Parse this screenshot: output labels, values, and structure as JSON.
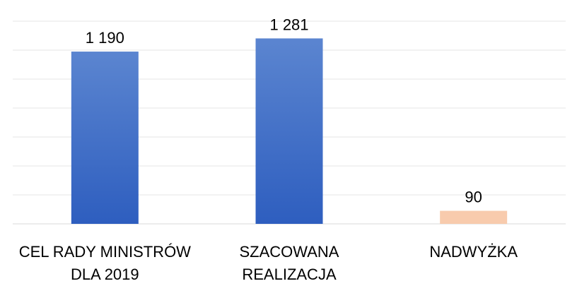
{
  "chart_data": {
    "type": "bar",
    "categories": [
      [
        "CEL RADY MINISTRÓW",
        "DLA 2019"
      ],
      [
        "SZACOWANA",
        "REALIZACJA"
      ],
      [
        "NADWYŻKA"
      ]
    ],
    "values": [
      1190,
      1281,
      90
    ],
    "value_labels": [
      "1 190",
      "1 281",
      "90"
    ],
    "bar_colors": [
      "#4472C4",
      "#4472C4",
      "#F8CBAD"
    ],
    "ylim": [
      0,
      1400
    ],
    "grid": true,
    "title": "",
    "xlabel": "",
    "ylabel": ""
  }
}
